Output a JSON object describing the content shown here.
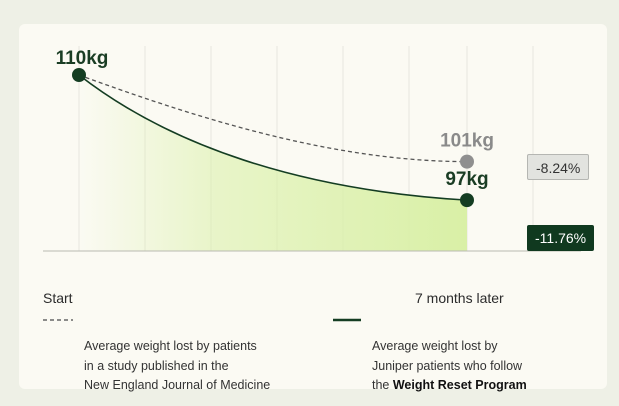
{
  "chart_data": {
    "type": "line",
    "x": [
      "Start",
      "7 months later"
    ],
    "series": [
      {
        "name": "Average weight lost by patients in a study published in the New England Journal of Medicine",
        "values": [
          110,
          101
        ],
        "end_label": "101kg",
        "change_label": "-8.24%",
        "style": "dashed",
        "color": "#555555",
        "point_color": "#8f8f8f"
      },
      {
        "name": "Average weight lost by Juniper patients who follow the Weight Reset Program",
        "values": [
          110,
          97
        ],
        "end_label": "97kg",
        "change_label": "-11.76%",
        "style": "solid",
        "color": "#143d22",
        "point_color": "#143d22"
      }
    ],
    "start_label": "110kg",
    "ylim": [
      94,
      112
    ],
    "grid": "vertical",
    "fill_color": "#d9f0a6"
  },
  "xaxis": {
    "start": "Start",
    "end": "7 months later"
  },
  "legend": {
    "dashed": [
      "Average weight lost by patients",
      "in a study published in the",
      "New England Journal of Medicine"
    ],
    "solid_line1": "Average weight lost by",
    "solid_line2": "Juniper patients who follow",
    "solid_prefix": "the ",
    "solid_bold": "Weight Reset Program"
  }
}
